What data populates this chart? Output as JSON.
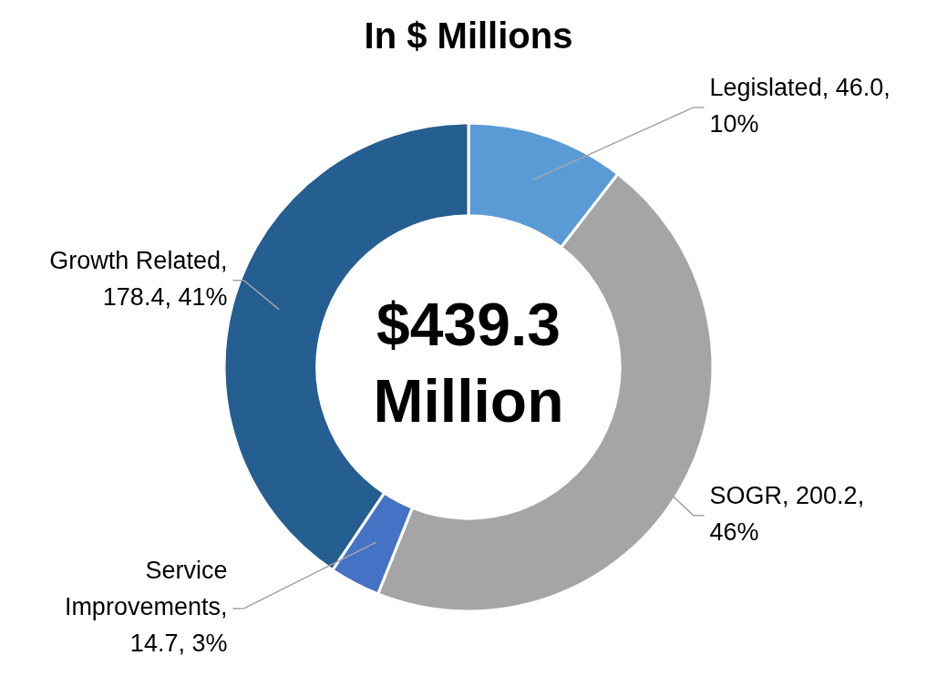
{
  "chart_data": {
    "type": "donut",
    "title": "In $ Millions",
    "categories": [
      "Legislated",
      "SOGR",
      "Service Improvements",
      "Growth Related"
    ],
    "values": [
      46.0,
      200.2,
      14.7,
      178.4
    ],
    "value_labels": [
      ", 46.0, 10%",
      ", 200.2, 46%",
      ", 14.7, 3%",
      ", 178.4, 41%"
    ],
    "colors": [
      "#5b9bd5",
      "#a5a5a5",
      "#4472c4",
      "#255e91"
    ],
    "annotations": [
      "$439.3 Million"
    ],
    "legend": false
  }
}
